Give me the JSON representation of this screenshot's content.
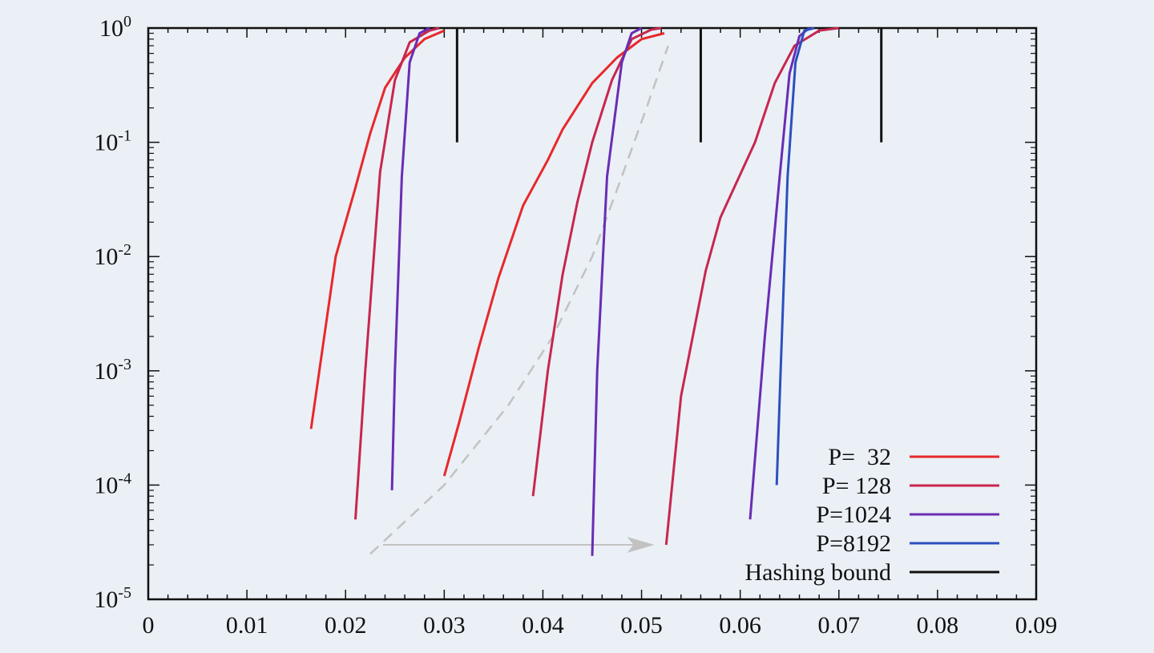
{
  "chart_data": {
    "type": "line",
    "title": "",
    "xlabel": "",
    "ylabel": "",
    "xlim": [
      0,
      0.09
    ],
    "ylim_log10": [
      -5,
      0
    ],
    "yscale": "log",
    "x_ticks": [
      "0",
      "0.01",
      "0.02",
      "0.03",
      "0.04",
      "0.05",
      "0.06",
      "0.07",
      "0.08",
      "0.09"
    ],
    "y_ticks": [
      {
        "base": "10",
        "exp": "0"
      },
      {
        "base": "10",
        "exp": "-1"
      },
      {
        "base": "10",
        "exp": "-2"
      },
      {
        "base": "10",
        "exp": "-3"
      },
      {
        "base": "10",
        "exp": "-4"
      },
      {
        "base": "10",
        "exp": "-5"
      }
    ],
    "legend_position": "bottom-right",
    "grid": false,
    "series": [
      {
        "name": "P=  32",
        "color": "#e8282a",
        "curves": [
          [
            [
              0.0165,
              0.00031
            ],
            [
              0.019,
              0.01
            ],
            [
              0.021,
              0.04
            ],
            [
              0.0225,
              0.12
            ],
            [
              0.024,
              0.3
            ],
            [
              0.026,
              0.55
            ],
            [
              0.028,
              0.8
            ],
            [
              0.03,
              0.95
            ]
          ],
          [
            [
              0.03,
              0.00012
            ],
            [
              0.0315,
              0.00035
            ],
            [
              0.0335,
              0.0016
            ],
            [
              0.0355,
              0.0065
            ],
            [
              0.038,
              0.028
            ],
            [
              0.0405,
              0.07
            ],
            [
              0.042,
              0.13
            ],
            [
              0.045,
              0.33
            ],
            [
              0.0475,
              0.55
            ],
            [
              0.05,
              0.8
            ],
            [
              0.0523,
              0.9
            ]
          ]
        ]
      },
      {
        "name": "P= 128",
        "color": "#c8264e",
        "curves": [
          [
            [
              0.021,
              5e-05
            ],
            [
              0.022,
              0.001
            ],
            [
              0.0235,
              0.055
            ],
            [
              0.025,
              0.35
            ],
            [
              0.0265,
              0.75
            ],
            [
              0.0285,
              0.95
            ],
            [
              0.0295,
              1.0
            ]
          ],
          [
            [
              0.039,
              8e-05
            ],
            [
              0.0405,
              0.001
            ],
            [
              0.042,
              0.007
            ],
            [
              0.0435,
              0.03
            ],
            [
              0.045,
              0.1
            ],
            [
              0.047,
              0.35
            ],
            [
              0.049,
              0.8
            ],
            [
              0.051,
              0.97
            ],
            [
              0.052,
              1.0
            ]
          ],
          [
            [
              0.0525,
              3e-05
            ],
            [
              0.054,
              0.0006
            ],
            [
              0.0565,
              0.0075
            ],
            [
              0.058,
              0.022
            ],
            [
              0.0615,
              0.1
            ],
            [
              0.0635,
              0.33
            ],
            [
              0.0655,
              0.7
            ],
            [
              0.068,
              0.95
            ],
            [
              0.07,
              1.0
            ]
          ]
        ]
      },
      {
        "name": "P=1024",
        "color": "#6a2cb4",
        "curves": [
          [
            [
              0.0247,
              9e-05
            ],
            [
              0.025,
              0.001
            ],
            [
              0.0257,
              0.05
            ],
            [
              0.0265,
              0.5
            ],
            [
              0.0275,
              0.9
            ],
            [
              0.0285,
              1.0
            ]
          ],
          [
            [
              0.045,
              2.4e-05
            ],
            [
              0.0455,
              0.001
            ],
            [
              0.0465,
              0.05
            ],
            [
              0.048,
              0.5
            ],
            [
              0.049,
              0.9
            ],
            [
              0.05,
              1.0
            ]
          ],
          [
            [
              0.061,
              5e-05
            ],
            [
              0.0625,
              0.002
            ],
            [
              0.064,
              0.05
            ],
            [
              0.065,
              0.4
            ],
            [
              0.066,
              0.85
            ],
            [
              0.067,
              1.0
            ]
          ]
        ]
      },
      {
        "name": "P=8192",
        "color": "#2d4fbf",
        "curves": [
          [
            [
              0.0637,
              0.0001
            ],
            [
              0.0641,
              0.001
            ],
            [
              0.0648,
              0.05
            ],
            [
              0.0656,
              0.5
            ],
            [
              0.0665,
              0.95
            ],
            [
              0.0675,
              1.0
            ]
          ]
        ]
      },
      {
        "name": "Hashing bound",
        "color": "#111111",
        "vertical_lines_x": [
          0.0313,
          0.056,
          0.0743
        ],
        "span_y": [
          0.1,
          1.0
        ]
      }
    ],
    "guide_curve": {
      "color": "#c2c2c2",
      "dashed": true,
      "points": [
        [
          0.0225,
          2.5e-05
        ],
        [
          0.03,
          0.0001
        ],
        [
          0.0365,
          0.0005
        ],
        [
          0.041,
          0.002
        ],
        [
          0.045,
          0.01
        ],
        [
          0.048,
          0.05
        ],
        [
          0.0505,
          0.2
        ],
        [
          0.0527,
          0.7
        ]
      ]
    },
    "arrow": {
      "color": "#c2c2c2",
      "from": [
        0.0238,
        3e-05
      ],
      "to": [
        0.0513,
        3e-05
      ]
    }
  }
}
